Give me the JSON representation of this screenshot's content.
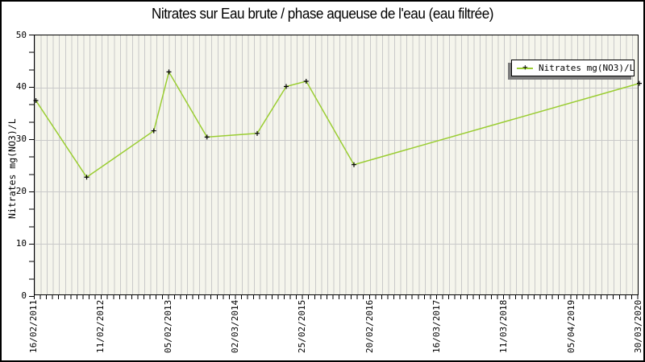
{
  "title": "Nitrates sur Eau brute / phase aqueuse de l'eau (eau filtrée)",
  "legend": {
    "label": "Nitrates mg(NO3)/L"
  },
  "chart_data": {
    "type": "line",
    "title": "Nitrates sur Eau brute / phase aqueuse de l'eau (eau filtrée)",
    "xlabel": "",
    "ylabel": "Nitrates mg(NO3)/L",
    "ylim": [
      0,
      50
    ],
    "y_ticks": [
      0,
      10,
      20,
      30,
      40,
      50
    ],
    "y_tick_step": 10,
    "x_tick_labels": [
      "16/02/2011",
      "11/02/2012",
      "05/02/2013",
      "02/03/2014",
      "25/02/2015",
      "20/02/2016",
      "16/03/2017",
      "11/03/2018",
      "05/04/2019",
      "30/03/2020"
    ],
    "grid": "vertical minor gridlines on striped beige background, horizontal gridlines at major y ticks",
    "legend_position": "top-right",
    "marker": "black plus",
    "colors": {
      "line": "#9acd32",
      "marker": "#000000",
      "plot_background": "#f5f5ec",
      "gridline": "#c9c9c9",
      "legend_shadow": "#7d7d7d",
      "text": "#000000"
    },
    "series": [
      {
        "name": "Nitrates mg(NO3)/L",
        "points": [
          {
            "x_frac": 0.002,
            "value": 37.5
          },
          {
            "x_frac": 0.086,
            "value": 22.8
          },
          {
            "x_frac": 0.197,
            "value": 31.7
          },
          {
            "x_frac": 0.222,
            "value": 43.0
          },
          {
            "x_frac": 0.285,
            "value": 30.5
          },
          {
            "x_frac": 0.368,
            "value": 31.2
          },
          {
            "x_frac": 0.416,
            "value": 40.2
          },
          {
            "x_frac": 0.449,
            "value": 41.2
          },
          {
            "x_frac": 0.528,
            "value": 25.2
          },
          {
            "x_frac": 1.0,
            "value": 40.8
          }
        ]
      }
    ]
  }
}
